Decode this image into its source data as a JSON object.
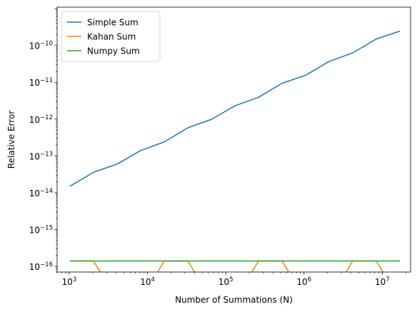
{
  "chart_data": {
    "type": "line",
    "title": "",
    "xlabel": "Number of Summations (N)",
    "ylabel": "Relative Error",
    "xscale": "log",
    "yscale": "log",
    "xlim": [
      700,
      23000000
    ],
    "ylim": [
      7e-17,
      1.1e-09
    ],
    "grid": false,
    "legend": "top-left",
    "x": [
      1024,
      2048,
      4096,
      8192,
      16384,
      32768,
      65536,
      131072,
      262144,
      524288,
      1048576,
      2097152,
      4194304,
      8388608,
      16777216
    ],
    "x_ticks": [
      {
        "value": 1000,
        "base": "10",
        "exp": "3"
      },
      {
        "value": 10000,
        "base": "10",
        "exp": "4"
      },
      {
        "value": 100000,
        "base": "10",
        "exp": "5"
      },
      {
        "value": 1000000,
        "base": "10",
        "exp": "6"
      },
      {
        "value": 10000000,
        "base": "10",
        "exp": "7"
      }
    ],
    "y_ticks": [
      {
        "value": 1e-16,
        "base": "10",
        "exp": "−16"
      },
      {
        "value": 1e-15,
        "base": "10",
        "exp": "−15"
      },
      {
        "value": 1e-14,
        "base": "10",
        "exp": "−14"
      },
      {
        "value": 1e-13,
        "base": "10",
        "exp": "−13"
      },
      {
        "value": 1e-12,
        "base": "10",
        "exp": "−12"
      },
      {
        "value": 1e-11,
        "base": "10",
        "exp": "−11"
      },
      {
        "value": 1e-10,
        "base": "10",
        "exp": "−10"
      }
    ],
    "series": [
      {
        "name": "Simple Sum",
        "color": "#1f77b4",
        "values": [
          1.5e-14,
          3.6e-14,
          6e-14,
          1.4e-13,
          2.4e-13,
          5.8e-13,
          9.8e-13,
          2.3e-12,
          3.9e-12,
          9.4e-12,
          1.55e-11,
          3.7e-11,
          6.3e-11,
          1.5e-10,
          2.45e-10
        ]
      },
      {
        "name": "Kahan Sum",
        "color": "#ff7f0e",
        "values": [
          1.4e-16,
          1.4e-16,
          0,
          0,
          1.4e-16,
          1.4e-16,
          0,
          0,
          1.4e-16,
          1.4e-16,
          0,
          0,
          1.4e-16,
          1.4e-16,
          0
        ]
      },
      {
        "name": "Numpy Sum",
        "color": "#2ca02c",
        "values": [
          1.4e-16,
          1.4e-16,
          1.4e-16,
          1.4e-16,
          1.4e-16,
          1.4e-16,
          1.4e-16,
          1.4e-16,
          1.4e-16,
          1.4e-16,
          1.4e-16,
          1.4e-16,
          1.4e-16,
          1.4e-16,
          1.4e-16
        ]
      }
    ]
  }
}
